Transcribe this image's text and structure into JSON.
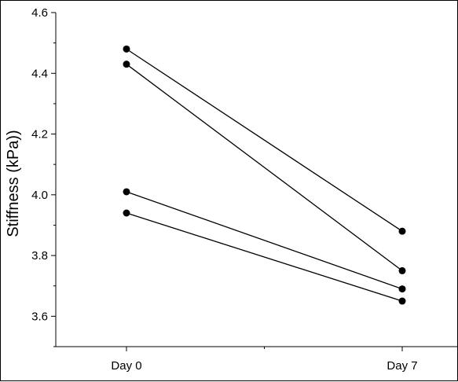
{
  "chart_data": {
    "type": "line",
    "title": "",
    "xlabel": "",
    "ylabel": "Stiffness (kPa))",
    "categories": [
      "Day 0",
      "Day 7"
    ],
    "ylim": [
      3.5,
      4.6
    ],
    "yticks": [
      3.6,
      3.8,
      4.0,
      4.2,
      4.4,
      4.6
    ],
    "ytick_labels": [
      "3.6",
      "3.8",
      "4.0",
      "4.2",
      "4.4",
      "4.6"
    ],
    "grid": false,
    "legend": "none",
    "series": [
      {
        "values": [
          4.48,
          3.88
        ]
      },
      {
        "values": [
          4.43,
          3.75
        ]
      },
      {
        "values": [
          4.01,
          3.69
        ]
      },
      {
        "values": [
          3.94,
          3.65
        ]
      }
    ],
    "colors": {
      "line": "#000000",
      "marker": "#000000"
    }
  }
}
